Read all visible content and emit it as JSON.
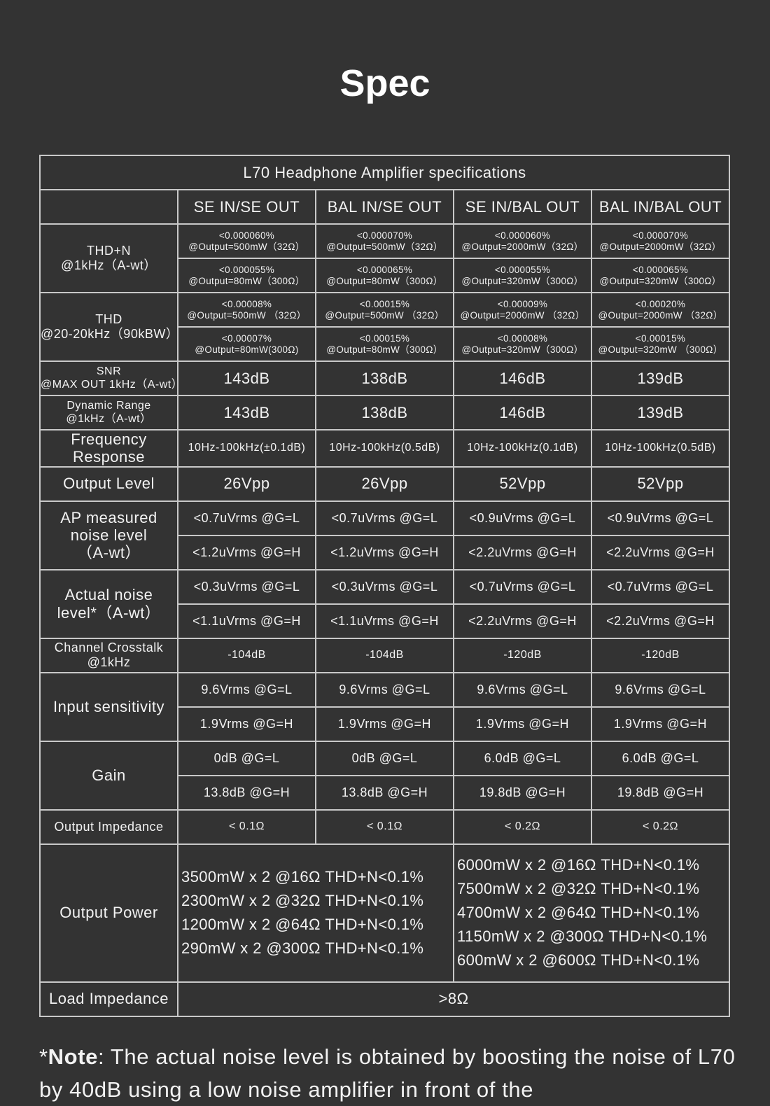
{
  "page_title": "Spec",
  "table": {
    "caption": "L70 Headphone Amplifier specifications",
    "columns": [
      "SE IN/SE OUT",
      "BAL IN/SE OUT",
      "SE IN/BAL OUT",
      "BAL IN/BAL OUT"
    ],
    "rows": [
      {
        "label": [
          "THD+N",
          "@1kHz（A-wt）"
        ],
        "label_size": "mid",
        "value_size": "tiny",
        "values": [
          [
            [
              "<0.000060%",
              "@Output=500mW（32Ω）"
            ],
            [
              "<0.000070%",
              "@Output=500mW（32Ω）"
            ],
            [
              "<0.000060%",
              "@Output=2000mW（32Ω）"
            ],
            [
              "<0.000070%",
              "@Output=2000mW（32Ω）"
            ]
          ],
          [
            [
              "<0.000055%",
              "@Output=80mW（300Ω）"
            ],
            [
              "<0.000065%",
              "@Output=80mW（300Ω）"
            ],
            [
              "<0.000055%",
              "@Output=320mW（300Ω）"
            ],
            [
              "<0.000065%",
              "@Output=320mW（300Ω）"
            ]
          ]
        ]
      },
      {
        "label": [
          "THD",
          "@20-20kHz（90kBW）"
        ],
        "label_size": "mid",
        "value_size": "tiny",
        "values": [
          [
            [
              "<0.00008%",
              "@Output=500mW （32Ω）"
            ],
            [
              "<0.00015%",
              "@Output=500mW （32Ω）"
            ],
            [
              "<0.00009%",
              "@Output=2000mW （32Ω）"
            ],
            [
              "<0.00020%",
              "@Output=2000mW （32Ω）"
            ]
          ],
          [
            [
              "<0.00007%",
              "@Output=80mW(300Ω)"
            ],
            [
              "<0.00015%",
              "@Output=80mW（300Ω）"
            ],
            [
              "<0.00008%",
              "@Output=320mW（300Ω）"
            ],
            [
              "<0.00015%",
              "@Output=320mW （300Ω）"
            ]
          ]
        ]
      },
      {
        "label": [
          "SNR",
          "@MAX OUT 1kHz（A-wt）"
        ],
        "label_size": "sm",
        "value_size": "big",
        "values": [
          [
            [
              "143dB"
            ],
            [
              "138dB"
            ],
            [
              "146dB"
            ],
            [
              "139dB"
            ]
          ]
        ]
      },
      {
        "label": [
          "Dynamic Range",
          "@1kHz（A-wt）"
        ],
        "label_size": "sm",
        "value_size": "big",
        "values": [
          [
            [
              "143dB"
            ],
            [
              "138dB"
            ],
            [
              "146dB"
            ],
            [
              "139dB"
            ]
          ]
        ]
      },
      {
        "label": [
          "Frequency",
          "Response"
        ],
        "label_size": "big",
        "value_size": "sm",
        "values": [
          [
            [
              "10Hz-100kHz(±0.1dB)"
            ],
            [
              "10Hz-100kHz(0.5dB)"
            ],
            [
              "10Hz-100kHz(0.1dB)"
            ],
            [
              "10Hz-100kHz(0.5dB)"
            ]
          ]
        ]
      },
      {
        "label": [
          "Output Level"
        ],
        "label_size": "big",
        "value_size": "big",
        "values": [
          [
            [
              "26Vpp"
            ],
            [
              "26Vpp"
            ],
            [
              "52Vpp"
            ],
            [
              "52Vpp"
            ]
          ]
        ]
      },
      {
        "label": [
          "AP measured",
          "noise level",
          "（A-wt）"
        ],
        "label_size": "big",
        "value_size": "mid",
        "values": [
          [
            [
              "<0.7uVrms @G=L"
            ],
            [
              "<0.7uVrms @G=L"
            ],
            [
              "<0.9uVrms @G=L"
            ],
            [
              "<0.9uVrms @G=L"
            ]
          ],
          [
            [
              "<1.2uVrms @G=H"
            ],
            [
              "<1.2uVrms @G=H"
            ],
            [
              "<2.2uVrms @G=H"
            ],
            [
              "<2.2uVrms @G=H"
            ]
          ]
        ]
      },
      {
        "label": [
          "Actual noise",
          "level*（A-wt）"
        ],
        "label_size": "big",
        "value_size": "mid",
        "values": [
          [
            [
              "<0.3uVrms @G=L"
            ],
            [
              "<0.3uVrms @G=L"
            ],
            [
              "<0.7uVrms @G=L"
            ],
            [
              "<0.7uVrms @G=L"
            ]
          ],
          [
            [
              "<1.1uVrms @G=H"
            ],
            [
              "<1.1uVrms @G=H"
            ],
            [
              "<2.2uVrms @G=H"
            ],
            [
              "<2.2uVrms @G=H"
            ]
          ]
        ]
      },
      {
        "label": [
          "Channel Crosstalk",
          "@1kHz"
        ],
        "label_size": "mid",
        "value_size": "sm",
        "values": [
          [
            [
              "-104dB"
            ],
            [
              "-104dB"
            ],
            [
              "-120dB"
            ],
            [
              "-120dB"
            ]
          ]
        ]
      },
      {
        "label": [
          "Input sensitivity"
        ],
        "label_size": "big",
        "value_size": "mid",
        "values": [
          [
            [
              "9.6Vrms @G=L"
            ],
            [
              "9.6Vrms @G=L"
            ],
            [
              "9.6Vrms @G=L"
            ],
            [
              "9.6Vrms @G=L"
            ]
          ],
          [
            [
              "1.9Vrms @G=H"
            ],
            [
              "1.9Vrms @G=H"
            ],
            [
              "1.9Vrms @G=H"
            ],
            [
              "1.9Vrms @G=H"
            ]
          ]
        ]
      },
      {
        "label": [
          "Gain"
        ],
        "label_size": "big",
        "value_size": "mid",
        "values": [
          [
            [
              "0dB @G=L"
            ],
            [
              "0dB @G=L"
            ],
            [
              "6.0dB @G=L"
            ],
            [
              "6.0dB @G=L"
            ]
          ],
          [
            [
              "13.8dB @G=H"
            ],
            [
              "13.8dB @G=H"
            ],
            [
              "19.8dB @G=H"
            ],
            [
              "19.8dB @G=H"
            ]
          ]
        ]
      },
      {
        "label": [
          "Output Impedance"
        ],
        "label_size": "mid",
        "value_size": "sm",
        "values": [
          [
            [
              "< 0.1Ω"
            ],
            [
              "< 0.1Ω"
            ],
            [
              "< 0.2Ω"
            ],
            [
              "< 0.2Ω"
            ]
          ]
        ]
      }
    ],
    "output_power": {
      "label": "Output Power",
      "se_out": [
        "3500mW x 2 @16Ω THD+N<0.1%",
        "2300mW x 2 @32Ω THD+N<0.1%",
        "1200mW x 2 @64Ω THD+N<0.1%",
        "290mW x 2 @300Ω THD+N<0.1%"
      ],
      "bal_out": [
        "6000mW x 2 @16Ω THD+N<0.1%",
        "7500mW x 2 @32Ω THD+N<0.1%",
        "4700mW x 2 @64Ω THD+N<0.1%",
        "1150mW x 2 @300Ω THD+N<0.1%",
        "600mW x 2 @600Ω THD+N<0.1%"
      ]
    },
    "load_impedance": {
      "label": "Load Impedance",
      "value": ">8Ω"
    }
  },
  "note": {
    "prefix": "*",
    "bold": "Note",
    "text": ": The actual noise level is obtained by boosting the noise of L70 by 40dB using a low noise amplifier in front of the"
  }
}
